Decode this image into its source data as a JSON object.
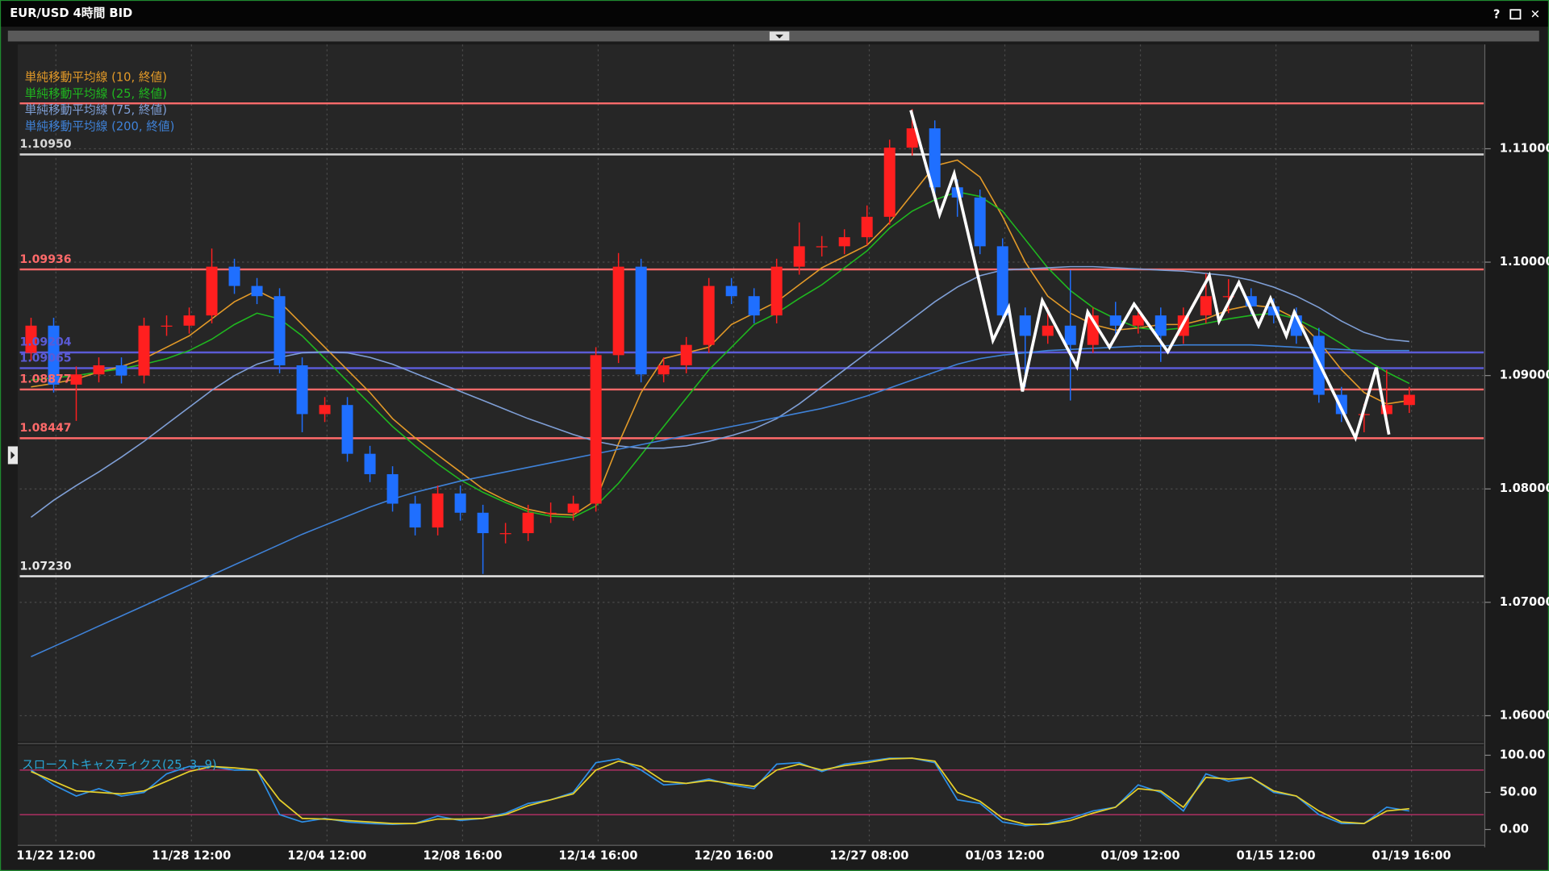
{
  "window": {
    "title": "EUR/USD 4時間 BID",
    "buttons": [
      "?",
      "✕"
    ]
  },
  "chart_data": [
    {
      "type": "candlestick",
      "x": [
        0,
        1,
        2,
        3,
        4,
        5,
        6,
        7,
        8,
        9,
        10,
        11,
        12,
        13,
        14,
        15,
        16,
        17,
        18,
        19,
        20,
        21,
        22,
        23,
        24,
        25,
        26,
        27,
        28,
        29,
        30,
        31,
        32,
        33,
        34,
        35,
        36,
        37,
        38,
        39,
        40,
        41,
        42,
        43,
        44,
        45,
        46,
        47,
        48,
        49,
        50,
        51,
        52,
        53,
        54,
        55,
        56,
        57,
        58,
        59,
        60,
        61
      ],
      "open": [
        1.092,
        1.0944,
        1.0892,
        1.0901,
        1.0909,
        1.09,
        1.0944,
        1.0944,
        1.0953,
        1.0996,
        1.0979,
        1.097,
        1.0909,
        1.0866,
        1.0874,
        1.0831,
        1.0813,
        1.0787,
        1.0766,
        1.0796,
        1.0779,
        1.0761,
        1.0761,
        1.0779,
        1.0779,
        1.0787,
        1.0918,
        1.0996,
        1.0901,
        1.0909,
        1.0927,
        1.0979,
        1.097,
        1.0953,
        1.0996,
        1.1014,
        1.1014,
        1.1022,
        1.104,
        1.1101,
        1.1118,
        1.1066,
        1.1057,
        1.1014,
        1.0953,
        1.0935,
        1.0944,
        1.0927,
        1.0953,
        1.0944,
        1.0953,
        1.0935,
        1.0953,
        1.097,
        1.097,
        1.0961,
        1.0953,
        1.0935,
        1.0883,
        1.0866,
        1.0866,
        1.0874
      ],
      "high": [
        1.0951,
        1.0951,
        1.0908,
        1.0916,
        1.0916,
        1.0951,
        1.0953,
        1.096,
        1.1012,
        1.1003,
        1.0986,
        1.0977,
        1.0916,
        1.0881,
        1.0881,
        1.0838,
        1.082,
        1.0794,
        1.0803,
        1.0803,
        1.0786,
        1.077,
        1.0786,
        1.0788,
        1.0794,
        1.0925,
        1.1008,
        1.1003,
        1.0916,
        1.0934,
        1.0986,
        1.0986,
        1.0977,
        1.1003,
        1.1035,
        1.1023,
        1.1029,
        1.105,
        1.1108,
        1.1135,
        1.1125,
        1.1073,
        1.1064,
        1.1021,
        1.096,
        1.096,
        1.0993,
        1.096,
        1.0965,
        1.096,
        1.096,
        1.096,
        1.099,
        1.0985,
        1.0977,
        1.0968,
        1.096,
        1.0942,
        1.089,
        1.0875,
        1.0905,
        1.089
      ],
      "low": [
        1.0913,
        1.0885,
        1.086,
        1.0894,
        1.0893,
        1.0893,
        1.0935,
        1.0937,
        1.0946,
        1.0972,
        1.0963,
        1.0902,
        1.085,
        1.0859,
        1.0824,
        1.0806,
        1.078,
        1.0759,
        1.0759,
        1.0772,
        1.0725,
        1.0752,
        1.0754,
        1.077,
        1.0772,
        1.078,
        1.0911,
        1.0894,
        1.0894,
        1.0902,
        1.092,
        1.0963,
        1.0946,
        1.0946,
        1.0989,
        1.1005,
        1.1007,
        1.1015,
        1.1033,
        1.1094,
        1.1059,
        1.104,
        1.1007,
        1.0946,
        1.089,
        1.0928,
        1.0878,
        1.092,
        1.0937,
        1.0937,
        1.0912,
        1.0928,
        1.0946,
        1.0955,
        1.0954,
        1.0946,
        1.0928,
        1.0876,
        1.0859,
        1.085,
        1.0859,
        1.0867
      ],
      "close": [
        1.0944,
        1.0892,
        1.0901,
        1.0909,
        1.09,
        1.0944,
        1.0944,
        1.0953,
        1.0996,
        1.0979,
        1.097,
        1.0909,
        1.0866,
        1.0874,
        1.0831,
        1.0813,
        1.0787,
        1.0766,
        1.0796,
        1.0779,
        1.0761,
        1.0761,
        1.0779,
        1.0779,
        1.0787,
        1.0918,
        1.0996,
        1.0901,
        1.0909,
        1.0927,
        1.0979,
        1.097,
        1.0953,
        1.0996,
        1.1014,
        1.1014,
        1.1022,
        1.104,
        1.1101,
        1.1118,
        1.1066,
        1.1057,
        1.1014,
        1.0953,
        1.0935,
        1.0944,
        1.0927,
        1.0953,
        1.0944,
        1.0953,
        1.0935,
        1.0953,
        1.097,
        1.097,
        1.0961,
        1.0953,
        1.0935,
        1.0883,
        1.0866,
        1.0866,
        1.0874,
        1.0883
      ],
      "up_color": "#ff1f1f",
      "down_color": "#1f6fff",
      "series": [
        {
          "name": "単純移動平均線 (10, 終値)",
          "color": "#e39a28",
          "values": [
            1.089,
            1.0893,
            1.0897,
            1.0903,
            1.0908,
            1.0915,
            1.0925,
            1.0935,
            1.095,
            1.0965,
            1.0975,
            1.0965,
            1.0945,
            1.0925,
            1.0905,
            1.0885,
            1.0862,
            1.0845,
            1.083,
            1.0815,
            1.08,
            1.079,
            1.0782,
            1.0778,
            1.0777,
            1.079,
            1.084,
            1.0885,
            1.0915,
            1.092,
            1.0925,
            1.0945,
            1.0955,
            1.0965,
            1.098,
            1.0995,
            1.1005,
            1.1015,
            1.1035,
            1.106,
            1.1085,
            1.109,
            1.1075,
            1.104,
            1.1,
            1.097,
            1.0955,
            1.0945,
            1.094,
            1.0942,
            1.0945,
            1.0945,
            1.095,
            1.0958,
            1.0962,
            1.096,
            1.095,
            1.093,
            1.0905,
            1.0885,
            1.0875,
            1.0878
          ]
        },
        {
          "name": "単純移動平均線 (25, 終値)",
          "color": "#1fb81f",
          "values": [
            1.0896,
            1.0898,
            1.09,
            1.0903,
            1.0906,
            1.091,
            1.0915,
            1.0922,
            1.0932,
            1.0945,
            1.0955,
            1.095,
            1.0935,
            1.0915,
            1.0895,
            1.0875,
            1.0855,
            1.0838,
            1.0822,
            1.0808,
            1.0797,
            1.0788,
            1.078,
            1.0776,
            1.0775,
            1.0785,
            1.0805,
            1.083,
            1.0855,
            1.088,
            1.0905,
            1.0925,
            1.0945,
            1.0955,
            1.0968,
            1.098,
            1.0995,
            1.101,
            1.103,
            1.1045,
            1.1055,
            1.1062,
            1.1058,
            1.1045,
            1.102,
            1.0995,
            1.0975,
            1.096,
            1.095,
            1.0942,
            1.094,
            1.0942,
            1.0946,
            1.095,
            1.0953,
            1.0955,
            1.095,
            1.094,
            1.0928,
            1.0915,
            1.0903,
            1.0893
          ]
        },
        {
          "name": "単純移動平均線 (75, 終値)",
          "color": "#7f9fd6",
          "values": [
            1.0775,
            1.079,
            1.0803,
            1.0815,
            1.0828,
            1.0842,
            1.0857,
            1.0872,
            1.0887,
            1.09,
            1.091,
            1.0916,
            1.092,
            1.0921,
            1.092,
            1.0916,
            1.091,
            1.0902,
            1.0894,
            1.0886,
            1.0878,
            1.087,
            1.0862,
            1.0855,
            1.0848,
            1.0842,
            1.0838,
            1.0836,
            1.0836,
            1.0838,
            1.0842,
            1.0847,
            1.0853,
            1.0862,
            1.0875,
            1.089,
            1.0905,
            1.092,
            1.0935,
            1.095,
            1.0965,
            1.0978,
            1.0988,
            1.0993,
            1.0994,
            1.0995,
            1.0996,
            1.0996,
            1.0995,
            1.0994,
            1.0993,
            1.0992,
            1.099,
            1.0988,
            1.0984,
            1.0978,
            1.097,
            1.096,
            1.0948,
            1.0938,
            1.0932,
            1.093
          ]
        },
        {
          "name": "単純移動平均線 (200, 終値)",
          "color": "#3f82d8",
          "values": [
            1.0652,
            1.0661,
            1.067,
            1.0679,
            1.0688,
            1.0697,
            1.0706,
            1.0715,
            1.0724,
            1.0733,
            1.0742,
            1.0751,
            1.076,
            1.0768,
            1.0776,
            1.0784,
            1.0791,
            1.0797,
            1.0802,
            1.0807,
            1.0811,
            1.0815,
            1.0819,
            1.0823,
            1.0827,
            1.0831,
            1.0835,
            1.0839,
            1.0843,
            1.0847,
            1.0851,
            1.0855,
            1.0859,
            1.0863,
            1.0867,
            1.0871,
            1.0876,
            1.0882,
            1.0889,
            1.0896,
            1.0903,
            1.091,
            1.0915,
            1.0918,
            1.092,
            1.0922,
            1.0923,
            1.0924,
            1.0925,
            1.0926,
            1.0926,
            1.0927,
            1.0927,
            1.0927,
            1.0927,
            1.0926,
            1.0925,
            1.0924,
            1.0923,
            1.0922,
            1.0922,
            1.0922
          ]
        }
      ],
      "levels": [
        {
          "value": 1.114,
          "color": "#ff6a6a"
        },
        {
          "value": 1.1095,
          "label": "1.10950",
          "color": "#d8d8d8"
        },
        {
          "value": 1.09936,
          "label": "1.09936",
          "color": "#ff6a6a"
        },
        {
          "value": 1.09204,
          "label": "1.09204",
          "color": "#5b5bd6"
        },
        {
          "value": 1.09065,
          "label": "1.09065",
          "color": "#5b5bd6"
        },
        {
          "value": 1.08877,
          "label": "1.08877",
          "color": "#ff6a6a"
        },
        {
          "value": 1.08447,
          "label": "1.08447",
          "color": "#ff6a6a"
        },
        {
          "value": 1.0723,
          "label": "1.07230",
          "color": "#e8e8e8"
        }
      ],
      "zigzag": {
        "color": "#ffffff",
        "x": [
          38.94,
          40.21,
          40.86,
          42.57,
          43.27,
          43.88,
          44.76,
          46.29,
          46.77,
          47.73,
          48.82,
          50.31,
          52.15,
          52.58,
          53.46,
          54.33,
          54.86,
          55.56,
          55.91,
          58.62,
          59.54,
          60.1
        ],
        "y": [
          1.1134,
          1.1042,
          1.1078,
          1.0931,
          1.096,
          1.0886,
          1.0966,
          1.0908,
          1.0956,
          1.0925,
          1.0963,
          1.0921,
          1.0988,
          1.0948,
          1.0982,
          1.0944,
          1.0968,
          1.0935,
          1.0956,
          1.0845,
          1.0907,
          1.0848
        ]
      },
      "xlim": [
        -0.5,
        61.5
      ],
      "xticks": [
        {
          "value": 1.1,
          "label": "11/22 12:00"
        },
        {
          "value": 7.1,
          "label": "11/28 12:00"
        },
        {
          "value": 13.1,
          "label": "12/04 12:00"
        },
        {
          "value": 19.1,
          "label": "12/08 16:00"
        },
        {
          "value": 25.1,
          "label": "12/14 16:00"
        },
        {
          "value": 31.1,
          "label": "12/20 16:00"
        },
        {
          "value": 37.1,
          "label": "12/27 08:00"
        },
        {
          "value": 43.1,
          "label": "01/03 12:00"
        },
        {
          "value": 49.1,
          "label": "01/09 12:00"
        },
        {
          "value": 55.1,
          "label": "01/15 12:00"
        },
        {
          "value": 61.1,
          "label": "01/19 16:00"
        }
      ],
      "ylim": [
        1.0578,
        1.1192
      ],
      "yticks": [
        {
          "value": 1.06,
          "label": "1.06000"
        },
        {
          "value": 1.07,
          "label": "1.07000"
        },
        {
          "value": 1.08,
          "label": "1.08000"
        },
        {
          "value": 1.09,
          "label": "1.09000"
        },
        {
          "value": 1.1,
          "label": "1.10000"
        },
        {
          "value": 1.11,
          "label": "1.11000"
        }
      ],
      "grid": true
    },
    {
      "type": "line",
      "title": "スローストキャスティクス(25, 3, 9)",
      "series": [
        {
          "color": "#2e8fe6",
          "values": [
            80,
            60,
            45,
            55,
            45,
            50,
            75,
            85,
            85,
            80,
            80,
            20,
            10,
            15,
            10,
            8,
            7,
            8,
            18,
            12,
            15,
            22,
            35,
            40,
            50,
            90,
            95,
            80,
            60,
            62,
            68,
            60,
            55,
            88,
            90,
            78,
            88,
            92,
            96,
            96,
            90,
            40,
            35,
            10,
            5,
            8,
            15,
            25,
            30,
            60,
            50,
            25,
            75,
            65,
            70,
            50,
            45,
            20,
            8,
            8,
            30,
            25
          ]
        },
        {
          "color": "#e6cf2a",
          "values": [
            78,
            65,
            52,
            50,
            48,
            52,
            65,
            78,
            85,
            83,
            80,
            40,
            15,
            14,
            12,
            10,
            8,
            8,
            14,
            14,
            15,
            20,
            32,
            40,
            48,
            80,
            92,
            85,
            65,
            62,
            66,
            62,
            58,
            80,
            88,
            80,
            86,
            90,
            95,
            96,
            92,
            50,
            38,
            15,
            7,
            7,
            12,
            22,
            30,
            55,
            52,
            30,
            70,
            68,
            70,
            52,
            45,
            25,
            10,
            8,
            25,
            28
          ]
        }
      ],
      "levels": [
        80,
        20
      ],
      "level_color": "#c8306e",
      "ylim": [
        -20,
        113
      ],
      "yticks": [
        {
          "value": 0,
          "label": "0.00"
        },
        {
          "value": 50,
          "label": "50.00"
        },
        {
          "value": 100,
          "label": "100.00"
        }
      ]
    }
  ]
}
